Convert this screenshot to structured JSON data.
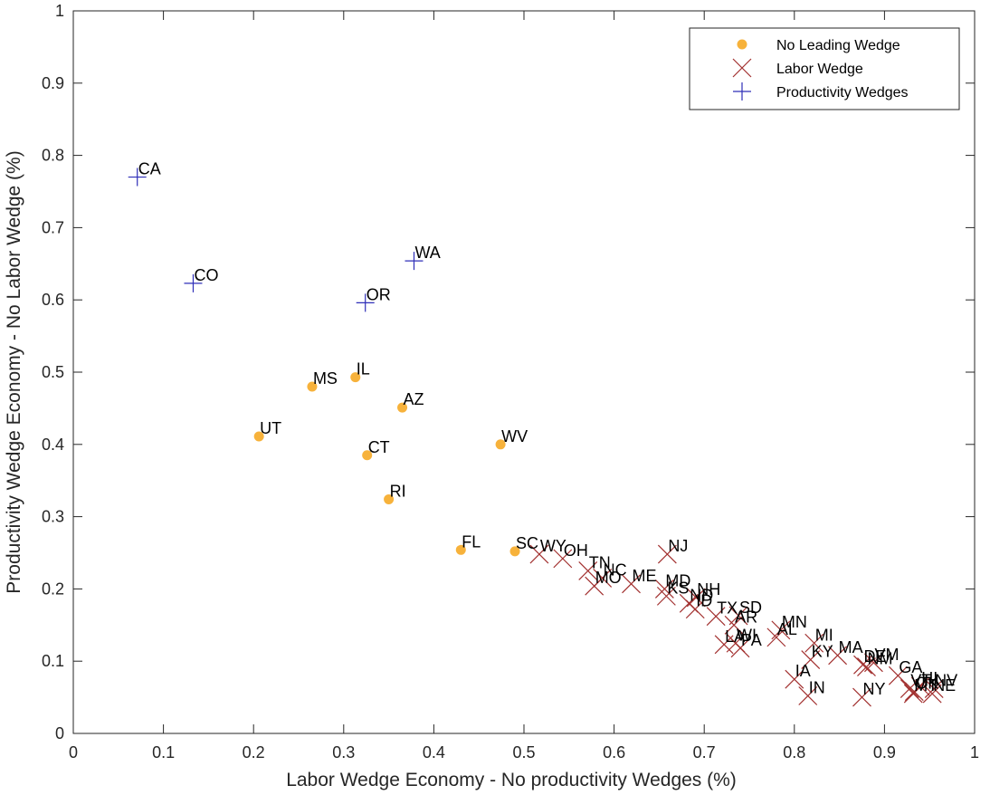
{
  "colors": {
    "no_leading_wedge": "#F7B23B",
    "labor_wedge": "#A2302F",
    "productivity_wedges": "#2E2EB8",
    "axis": "#262626"
  },
  "chart_data": {
    "type": "scatter",
    "xlabel": "Labor Wedge Economy - No productivity Wedges (%)",
    "ylabel": "Productivity Wedge Economy - No Labor Wedge (%)",
    "xlim": [
      0,
      1
    ],
    "ylim": [
      0,
      1
    ],
    "xticks": [
      "0",
      "0.1",
      "0.2",
      "0.3",
      "0.4",
      "0.5",
      "0.6",
      "0.7",
      "0.8",
      "0.9",
      "1"
    ],
    "yticks": [
      "0",
      "0.1",
      "0.2",
      "0.3",
      "0.4",
      "0.5",
      "0.6",
      "0.7",
      "0.8",
      "0.9",
      "1"
    ],
    "grid": false,
    "legend_position": "top-right",
    "series": [
      {
        "name": "No Leading Wedge",
        "marker": "circle",
        "color_key": "no_leading_wedge",
        "points": [
          {
            "label": "IL",
            "x": 0.313,
            "y": 0.493
          },
          {
            "label": "MS",
            "x": 0.265,
            "y": 0.48
          },
          {
            "label": "AZ",
            "x": 0.365,
            "y": 0.451
          },
          {
            "label": "UT",
            "x": 0.206,
            "y": 0.411
          },
          {
            "label": "WV",
            "x": 0.474,
            "y": 0.4
          },
          {
            "label": "CT",
            "x": 0.326,
            "y": 0.385
          },
          {
            "label": "RI",
            "x": 0.35,
            "y": 0.324
          },
          {
            "label": "FL",
            "x": 0.43,
            "y": 0.254
          },
          {
            "label": "SC",
            "x": 0.49,
            "y": 0.252
          }
        ]
      },
      {
        "name": "Labor Wedge",
        "marker": "x",
        "color_key": "labor_wedge",
        "points": [
          {
            "label": "NJ",
            "x": 0.659,
            "y": 0.248
          },
          {
            "label": "WY",
            "x": 0.517,
            "y": 0.248
          },
          {
            "label": "OH",
            "x": 0.543,
            "y": 0.242
          },
          {
            "label": "TN",
            "x": 0.571,
            "y": 0.225
          },
          {
            "label": "NC",
            "x": 0.587,
            "y": 0.215
          },
          {
            "label": "MO",
            "x": 0.578,
            "y": 0.204
          },
          {
            "label": "ME",
            "x": 0.619,
            "y": 0.207
          },
          {
            "label": "MD",
            "x": 0.656,
            "y": 0.2
          },
          {
            "label": "KS",
            "x": 0.658,
            "y": 0.19
          },
          {
            "label": "NH",
            "x": 0.691,
            "y": 0.188
          },
          {
            "label": "ND",
            "x": 0.683,
            "y": 0.18
          },
          {
            "label": "ID",
            "x": 0.69,
            "y": 0.172
          },
          {
            "label": "TX",
            "x": 0.713,
            "y": 0.162
          },
          {
            "label": "SD",
            "x": 0.738,
            "y": 0.163
          },
          {
            "label": "AR",
            "x": 0.733,
            "y": 0.15
          },
          {
            "label": "MN",
            "x": 0.785,
            "y": 0.143
          },
          {
            "label": "AL",
            "x": 0.78,
            "y": 0.133
          },
          {
            "label": "LA",
            "x": 0.722,
            "y": 0.123
          },
          {
            "label": "WI",
            "x": 0.735,
            "y": 0.125
          },
          {
            "label": "PA",
            "x": 0.74,
            "y": 0.118
          },
          {
            "label": "MI",
            "x": 0.822,
            "y": 0.125
          },
          {
            "label": "KY",
            "x": 0.818,
            "y": 0.102
          },
          {
            "label": "MA",
            "x": 0.848,
            "y": 0.108
          },
          {
            "label": "DE",
            "x": 0.876,
            "y": 0.095
          },
          {
            "label": "VM",
            "x": 0.888,
            "y": 0.098
          },
          {
            "label": "NM",
            "x": 0.88,
            "y": 0.092
          },
          {
            "label": "GA",
            "x": 0.915,
            "y": 0.08
          },
          {
            "label": "IA",
            "x": 0.8,
            "y": 0.075
          },
          {
            "label": "VT",
            "x": 0.928,
            "y": 0.062
          },
          {
            "label": "OK",
            "x": 0.933,
            "y": 0.058
          },
          {
            "label": "HI",
            "x": 0.94,
            "y": 0.065
          },
          {
            "label": "NV",
            "x": 0.955,
            "y": 0.062
          },
          {
            "label": "MT",
            "x": 0.932,
            "y": 0.055
          },
          {
            "label": "NE",
            "x": 0.953,
            "y": 0.055
          },
          {
            "label": "IN",
            "x": 0.815,
            "y": 0.052
          },
          {
            "label": "NY",
            "x": 0.875,
            "y": 0.05
          }
        ]
      },
      {
        "name": "Productivity Wedges",
        "marker": "plus",
        "color_key": "productivity_wedges",
        "points": [
          {
            "label": "CA",
            "x": 0.071,
            "y": 0.77
          },
          {
            "label": "WA",
            "x": 0.378,
            "y": 0.654
          },
          {
            "label": "CO",
            "x": 0.133,
            "y": 0.623
          },
          {
            "label": "OR",
            "x": 0.324,
            "y": 0.596
          }
        ]
      }
    ]
  }
}
